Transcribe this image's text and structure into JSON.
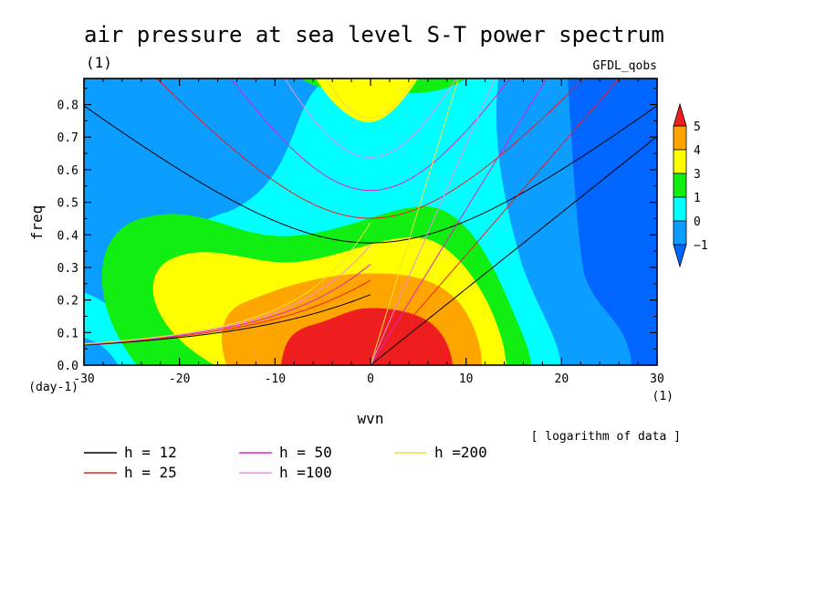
{
  "chart_data": {
    "type": "heatmap",
    "title": "air pressure at sea level S-T power spectrum",
    "title_unit": "(1)",
    "source_label": "GFDL_qobs",
    "xlabel": "wvn",
    "x_unit": "(1)",
    "ylabel": "freq",
    "y_unit": "(day-1)",
    "xlim": [
      -30,
      30
    ],
    "ylim": [
      0,
      0.88
    ],
    "xticks": [
      -30,
      -20,
      -10,
      0,
      10,
      20,
      30
    ],
    "xtick_labels": [
      "-30",
      "-20",
      "-10",
      "0",
      "10",
      "20",
      "30"
    ],
    "yticks": [
      0,
      0.1,
      0.2,
      0.3,
      0.4,
      0.5,
      0.6,
      0.7,
      0.8
    ],
    "ytick_labels": [
      "0.0",
      "0.1",
      "0.2",
      "0.3",
      "0.4",
      "0.5",
      "0.6",
      "0.7",
      "0.8"
    ],
    "note": "[ logarithm of data ]",
    "colorbar": {
      "labels": [
        "5",
        "4",
        "3",
        "1",
        "0",
        "−1"
      ],
      "colors": [
        "#ee1e1e",
        "#ffa500",
        "#ffff00",
        "#11ee11",
        "#00ffff",
        "#0b9dff",
        "#0066ff"
      ]
    },
    "fill_levels": [
      {
        "level": "below -1",
        "color": "#0066ff"
      },
      {
        "level": "-1 to 0",
        "color": "#0b9dff"
      },
      {
        "level": "0 to 1",
        "color": "#00ffff"
      },
      {
        "level": "1 to 3",
        "color": "#11ee11"
      },
      {
        "level": "3 to 4",
        "color": "#ffff00"
      },
      {
        "level": "4 to 5",
        "color": "#ffa500"
      },
      {
        "level": "above 5",
        "color": "#ee1e1e"
      }
    ],
    "dispersion_curves": [
      {
        "label": "h = 12",
        "h": 12,
        "color": "#000000"
      },
      {
        "label": "h = 25",
        "h": 25,
        "color": "#ee1e1e"
      },
      {
        "label": "h = 50",
        "h": 50,
        "color": "#e020c8"
      },
      {
        "label": "h =100",
        "h": 100,
        "color": "#e890e0"
      },
      {
        "label": "h =200",
        "h": 200,
        "color": "#f0e040"
      }
    ]
  }
}
